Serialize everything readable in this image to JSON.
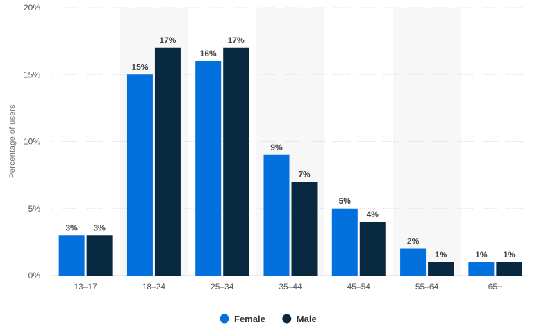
{
  "chart_data": {
    "type": "bar",
    "title": "",
    "xlabel": "",
    "ylabel": "Percentage of users",
    "ylim": [
      0,
      20
    ],
    "yticks": [
      0,
      5,
      10,
      15,
      20
    ],
    "ytick_suffix": "%",
    "categories": [
      "13–17",
      "18–24",
      "25–34",
      "35–44",
      "45–54",
      "55–64",
      "65+"
    ],
    "series": [
      {
        "name": "Female",
        "color": "#0270dd",
        "values": [
          3,
          15,
          16,
          9,
          5,
          2,
          1
        ],
        "labels": [
          "3%",
          "15%",
          "16%",
          "9%",
          "5%",
          "2%",
          "1%"
        ]
      },
      {
        "name": "Male",
        "color": "#082940",
        "values": [
          3,
          17,
          17,
          7,
          4,
          1,
          1
        ],
        "labels": [
          "3%",
          "17%",
          "17%",
          "7%",
          "4%",
          "1%",
          "1%"
        ]
      }
    ],
    "grid": true,
    "legend": "bottom-center",
    "band_color": "#f7f7f7"
  }
}
